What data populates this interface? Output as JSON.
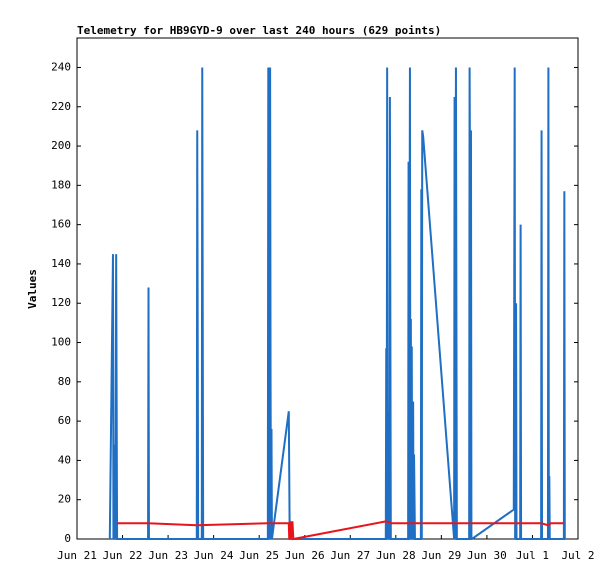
{
  "chart_data": {
    "type": "line",
    "title": "Telemetry for HB9GYD-9 over last 240 hours (629 points)",
    "y_label": "Values",
    "xlim": [
      0,
      11
    ],
    "ylim": [
      0,
      255
    ],
    "xticks": [
      {
        "value": 0,
        "label": "Jun 21"
      },
      {
        "value": 1,
        "label": "Jun 22"
      },
      {
        "value": 2,
        "label": "Jun 23"
      },
      {
        "value": 3,
        "label": "Jun 24"
      },
      {
        "value": 4,
        "label": "Jun 25"
      },
      {
        "value": 5,
        "label": "Jun 26"
      },
      {
        "value": 6,
        "label": "Jun 27"
      },
      {
        "value": 7,
        "label": "Jun 28"
      },
      {
        "value": 8,
        "label": "Jun 29"
      },
      {
        "value": 9,
        "label": "Jun 30"
      },
      {
        "value": 10,
        "label": "Jul 1"
      },
      {
        "value": 11,
        "label": "Jul 2"
      }
    ],
    "yticks": [
      0,
      20,
      40,
      60,
      80,
      100,
      120,
      140,
      160,
      180,
      200,
      220,
      240
    ],
    "series": [
      {
        "color": "#1f6fc4",
        "x": [
          0.72,
          0.79,
          0.8,
          0.83,
          0.84,
          0.86,
          0.88,
          1.56,
          1.57,
          1.58,
          2.63,
          2.64,
          2.66,
          2.74,
          2.75,
          2.77,
          4.19,
          4.2,
          4.22,
          4.24,
          4.25,
          4.26,
          4.27,
          4.28,
          4.65,
          4.67,
          6.78,
          6.79,
          6.8,
          6.81,
          6.82,
          6.85,
          6.86,
          6.87,
          6.89,
          7.27,
          7.28,
          7.29,
          7.31,
          7.32,
          7.33,
          7.34,
          7.35,
          7.36,
          7.38,
          7.39,
          7.4,
          7.42,
          7.55,
          7.56,
          7.57,
          7.58,
          7.6,
          8.28,
          8.29,
          8.3,
          8.32,
          8.34,
          8.61,
          8.62,
          8.63,
          8.64,
          8.65,
          8.66,
          8.67,
          9.59,
          9.61,
          9.62,
          9.64,
          9.65,
          9.73,
          9.74,
          9.75,
          10.19,
          10.2,
          10.21,
          10.34,
          10.35,
          10.36,
          10.37,
          10.38,
          10.69,
          10.7,
          10.71
        ],
        "values": [
          0,
          145,
          0,
          48,
          0,
          145,
          0,
          0,
          128,
          0,
          0,
          208,
          0,
          0,
          240,
          0,
          0,
          240,
          0,
          240,
          80,
          0,
          56,
          0,
          65,
          0,
          0,
          97,
          0,
          240,
          0,
          65,
          0,
          225,
          0,
          0,
          192,
          0,
          240,
          0,
          112,
          0,
          98,
          0,
          70,
          0,
          43,
          0,
          0,
          178,
          0,
          208,
          205,
          0,
          225,
          0,
          240,
          0,
          0,
          240,
          178,
          0,
          208,
          0,
          0,
          15,
          240,
          0,
          120,
          0,
          0,
          160,
          0,
          0,
          208,
          0,
          0,
          240,
          0,
          32,
          0,
          0,
          177,
          0
        ]
      },
      {
        "color": "#e8141a",
        "x": [
          0.88,
          1.56,
          2.63,
          4.19,
          4.65,
          4.66,
          4.69,
          4.7,
          4.73,
          4.75,
          6.79,
          6.9,
          10.19,
          10.35,
          10.4,
          10.69
        ],
        "values": [
          8,
          8,
          7,
          8,
          8,
          0,
          9,
          0,
          9,
          0,
          9,
          8,
          8,
          7,
          8,
          8
        ]
      }
    ]
  }
}
